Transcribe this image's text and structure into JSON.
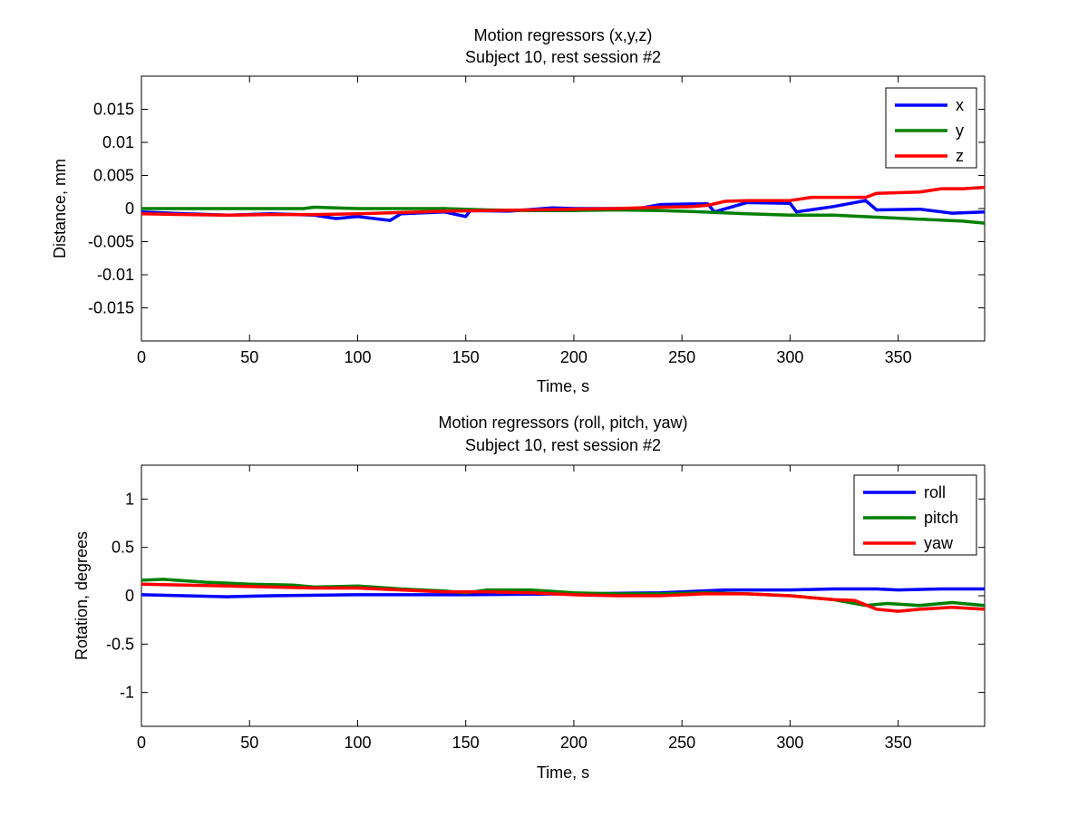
{
  "chart_data": [
    {
      "type": "line",
      "title": "Motion regressors (x,y,z)",
      "subtitle": "Subject 10, rest session #2",
      "xlabel": "Time, s",
      "ylabel": "Distance, mm",
      "xlim": [
        0,
        390
      ],
      "ylim": [
        -0.02,
        0.02
      ],
      "xticks": [
        0,
        50,
        100,
        150,
        200,
        250,
        300,
        350
      ],
      "yticks": [
        0.015,
        0.01,
        0.005,
        0,
        -0.005,
        -0.01,
        -0.015
      ],
      "ytick_labels": [
        "0.015",
        "0.01",
        "0.005",
        "0",
        "-0.005",
        "-0.01",
        "-0.015"
      ],
      "legend_position": "top-right",
      "series": [
        {
          "name": "x",
          "color": "#0000ff",
          "x": [
            0,
            20,
            40,
            60,
            80,
            90,
            100,
            115,
            120,
            140,
            150,
            152,
            170,
            190,
            200,
            230,
            240,
            255,
            262,
            265,
            280,
            300,
            303,
            320,
            335,
            340,
            360,
            375,
            390
          ],
          "y": [
            -0.0005,
            -0.0008,
            -0.001,
            -0.0008,
            -0.001,
            -0.0015,
            -0.0012,
            -0.0018,
            -0.0008,
            -0.0005,
            -0.0012,
            -0.0003,
            -0.0004,
            0.0001,
            0,
            0,
            0.0006,
            0.0007,
            0.0007,
            -0.0005,
            0.0009,
            0.0008,
            -0.0005,
            0.0003,
            0.0012,
            -0.0002,
            -0.0001,
            -0.0007,
            -0.0005
          ]
        },
        {
          "name": "y",
          "color": "#008000",
          "x": [
            0,
            30,
            60,
            75,
            80,
            100,
            140,
            160,
            180,
            200,
            220,
            240,
            260,
            280,
            300,
            320,
            340,
            360,
            380,
            390
          ],
          "y": [
            0,
            0,
            0,
            0,
            0.0002,
            0,
            0,
            -0.0002,
            -0.0003,
            -0.0003,
            -0.0002,
            -0.0003,
            -0.0005,
            -0.0008,
            -0.001,
            -0.001,
            -0.0013,
            -0.0016,
            -0.0019,
            -0.0022
          ]
        },
        {
          "name": "z",
          "color": "#ff0000",
          "x": [
            0,
            20,
            40,
            60,
            80,
            100,
            120,
            140,
            160,
            180,
            200,
            220,
            240,
            255,
            262,
            270,
            280,
            300,
            310,
            320,
            335,
            340,
            360,
            370,
            380,
            390
          ],
          "y": [
            -0.0008,
            -0.0009,
            -0.001,
            -0.0009,
            -0.0009,
            -0.0008,
            -0.0006,
            -0.0004,
            -0.0003,
            -0.0002,
            -0.0001,
            0,
            0.0002,
            0.0003,
            0.0005,
            0.0011,
            0.0012,
            0.0012,
            0.0017,
            0.0017,
            0.0017,
            0.0023,
            0.0025,
            0.003,
            0.003,
            0.0032
          ]
        }
      ]
    },
    {
      "type": "line",
      "title": "Motion regressors (roll, pitch, yaw)",
      "subtitle": "Subject 10, rest session #2",
      "xlabel": "Time, s",
      "ylabel": "Rotation, degrees",
      "xlim": [
        0,
        390
      ],
      "ylim": [
        -1.35,
        1.35
      ],
      "xticks": [
        0,
        50,
        100,
        150,
        200,
        250,
        300,
        350
      ],
      "yticks": [
        1,
        0.5,
        0,
        -0.5,
        -1
      ],
      "ytick_labels": [
        "1",
        "0.5",
        "0",
        "-0.5",
        "-1"
      ],
      "legend_position": "top-right",
      "series": [
        {
          "name": "roll",
          "color": "#0000ff",
          "x": [
            0,
            20,
            40,
            60,
            100,
            150,
            200,
            240,
            250,
            270,
            300,
            320,
            340,
            350,
            370,
            390
          ],
          "y": [
            0.01,
            0,
            -0.01,
            0,
            0.01,
            0.01,
            0.02,
            0.03,
            0.04,
            0.06,
            0.06,
            0.07,
            0.07,
            0.06,
            0.07,
            0.07
          ]
        },
        {
          "name": "pitch",
          "color": "#008000",
          "x": [
            0,
            10,
            30,
            50,
            70,
            80,
            100,
            120,
            140,
            150,
            160,
            180,
            200,
            220,
            240,
            260,
            280,
            300,
            320,
            335,
            345,
            360,
            375,
            390
          ],
          "y": [
            0.16,
            0.17,
            0.14,
            0.12,
            0.11,
            0.09,
            0.1,
            0.07,
            0.05,
            0.03,
            0.06,
            0.06,
            0.03,
            0.02,
            0.02,
            0.03,
            0.02,
            0.0,
            -0.04,
            -0.1,
            -0.08,
            -0.1,
            -0.07,
            -0.1
          ]
        },
        {
          "name": "yaw",
          "color": "#ff0000",
          "x": [
            0,
            20,
            40,
            60,
            80,
            100,
            120,
            140,
            160,
            180,
            200,
            220,
            240,
            260,
            280,
            300,
            320,
            330,
            340,
            350,
            360,
            375,
            390
          ],
          "y": [
            0.12,
            0.11,
            0.1,
            0.09,
            0.08,
            0.08,
            0.06,
            0.04,
            0.04,
            0.03,
            0.01,
            0.0,
            0.0,
            0.02,
            0.02,
            0.0,
            -0.04,
            -0.05,
            -0.14,
            -0.16,
            -0.14,
            -0.12,
            -0.14
          ]
        }
      ]
    }
  ]
}
